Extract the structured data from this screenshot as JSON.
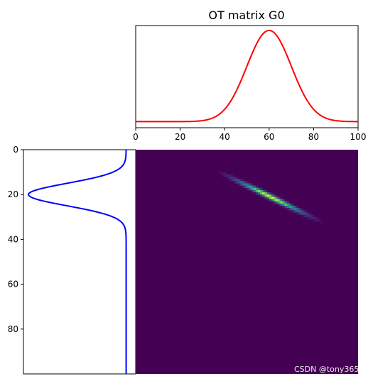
{
  "chart_data": [
    {
      "id": "source",
      "type": "line",
      "title": "OT matrix G0",
      "xlabel": "",
      "ylabel": "",
      "x_range": [
        0,
        100
      ],
      "x_ticks": [
        0,
        20,
        40,
        60,
        80,
        100
      ],
      "y_ticks": [],
      "grid": false,
      "color": "#ff0000",
      "series": [
        {
          "distribution": "gaussian",
          "mean": 60,
          "std": 10,
          "baseline": 0.0025,
          "peak": 0.04
        }
      ]
    },
    {
      "id": "target",
      "type": "line",
      "title": "",
      "orientation": "vertical-inverted",
      "y_range": [
        0,
        100
      ],
      "y_ticks": [
        0,
        20,
        40,
        60,
        80
      ],
      "x_ticks": [],
      "grid": false,
      "color": "#0000ff",
      "series": [
        {
          "distribution": "gaussian",
          "mean": 20,
          "std": 5,
          "baseline": 0.0025,
          "peak": 0.08
        }
      ]
    },
    {
      "id": "ot-matrix",
      "type": "heatmap",
      "title": "",
      "colormap": "viridis",
      "rows": 100,
      "cols": 100,
      "background": "#440154",
      "ridge": {
        "start": [
          32,
          7
        ],
        "end": [
          88,
          34
        ],
        "peak_at": [
          60,
          20
        ]
      }
    }
  ],
  "watermark": "CSDN @tony365"
}
